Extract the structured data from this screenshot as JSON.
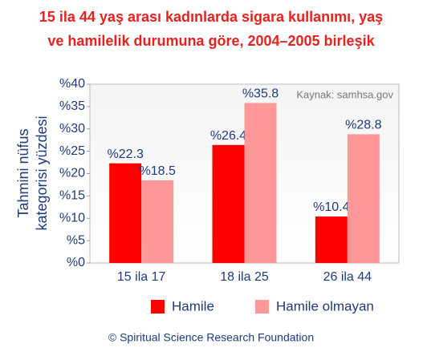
{
  "chart_data": {
    "type": "bar",
    "title": [
      "15 ila 44 yaş arası kadınlarda sigara kullanımı, yaş",
      "ve hamilelik durumuna göre, 2004–2005 birleşik"
    ],
    "y_label": [
      "Tahmini nüfus",
      "kategorisi yüzdesi"
    ],
    "annotation": "Kaynak: samhsa.gov",
    "footer": "© Spiritual Science Research Foundation",
    "categories": [
      "15 ila 17",
      "18 ila 25",
      "26 ila 44"
    ],
    "series": [
      {
        "name": "Hamile",
        "color": "#ff0000",
        "values": [
          22.3,
          26.4,
          10.4
        ],
        "value_labels": [
          "%22.3",
          "%26.4",
          "%10.4"
        ]
      },
      {
        "name": "Hamile olmayan",
        "color": "#ff9999",
        "values": [
          18.5,
          35.8,
          28.8
        ],
        "value_labels": [
          "%18.5",
          "%35.8",
          "%28.8"
        ]
      }
    ],
    "ylim": [
      0,
      40
    ],
    "yticks": [
      {
        "value": 0,
        "label": "%0"
      },
      {
        "value": 5,
        "label": "%5"
      },
      {
        "value": 10,
        "label": "%10"
      },
      {
        "value": 15,
        "label": "%15"
      },
      {
        "value": 20,
        "label": "%20"
      },
      {
        "value": 25,
        "label": "%25"
      },
      {
        "value": 30,
        "label": "%30"
      },
      {
        "value": 35,
        "label": "%35"
      },
      {
        "value": 40,
        "label": "%40"
      }
    ],
    "grid": false
  }
}
